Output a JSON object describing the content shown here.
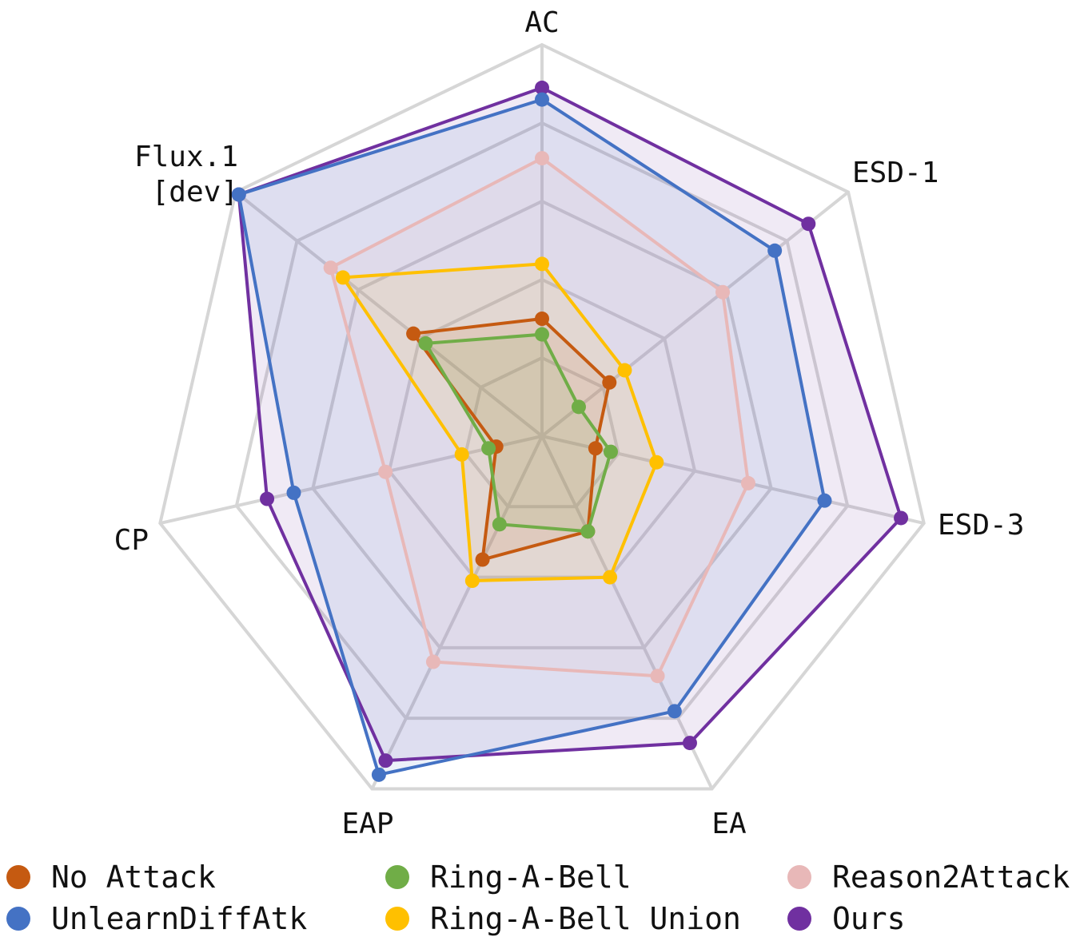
{
  "chart_data": {
    "type": "radar",
    "axes": [
      "AC",
      "ESD-1",
      "ESD-3",
      "EA",
      "EAP",
      "CP",
      "Flux.1 [dev]"
    ],
    "axis_label_lines": [
      [
        "AC"
      ],
      [
        "ESD-1"
      ],
      [
        "ESD-3"
      ],
      [
        "EA"
      ],
      [
        "EAP"
      ],
      [
        "CP"
      ],
      [
        "Flux.1",
        "[dev]"
      ]
    ],
    "range": [
      0,
      1
    ],
    "grid_levels": [
      0.2,
      0.4,
      0.6,
      0.8,
      1.0
    ],
    "grid": true,
    "legend_position": "bottom",
    "series": [
      {
        "name": "No Attack",
        "color": "#c55a11",
        "values": [
          0.3,
          0.22,
          0.14,
          0.27,
          0.35,
          0.12,
          0.42
        ],
        "fill": true
      },
      {
        "name": "UnlearnDiffAtk",
        "color": "#4472c4",
        "values": [
          0.86,
          0.76,
          0.74,
          0.78,
          0.96,
          0.65,
          0.99
        ],
        "fill": true
      },
      {
        "name": "Ring-A-Bell",
        "color": "#70ad47",
        "values": [
          0.26,
          0.12,
          0.18,
          0.27,
          0.25,
          0.14,
          0.38
        ],
        "fill": true
      },
      {
        "name": "Ring-A-Bell Union",
        "color": "#ffc000",
        "values": [
          0.44,
          0.27,
          0.3,
          0.4,
          0.41,
          0.21,
          0.65
        ],
        "fill": true
      },
      {
        "name": "Reason2Attack",
        "color": "#e8b8b8",
        "values": [
          0.71,
          0.59,
          0.54,
          0.68,
          0.64,
          0.41,
          0.69
        ],
        "fill": true
      },
      {
        "name": "Ours",
        "color": "#7030a0",
        "values": [
          0.89,
          0.87,
          0.94,
          0.87,
          0.92,
          0.72,
          0.99
        ],
        "fill": true
      }
    ]
  },
  "legend": [
    {
      "label": "No Attack",
      "color": "#c55a11"
    },
    {
      "label": "UnlearnDiffAtk",
      "color": "#4472c4"
    },
    {
      "label": "Ring-A-Bell",
      "color": "#70ad47"
    },
    {
      "label": "Ring-A-Bell Union",
      "color": "#ffc000"
    },
    {
      "label": "Reason2Attack",
      "color": "#e8b8b8"
    },
    {
      "label": "Ours",
      "color": "#7030a0"
    }
  ]
}
